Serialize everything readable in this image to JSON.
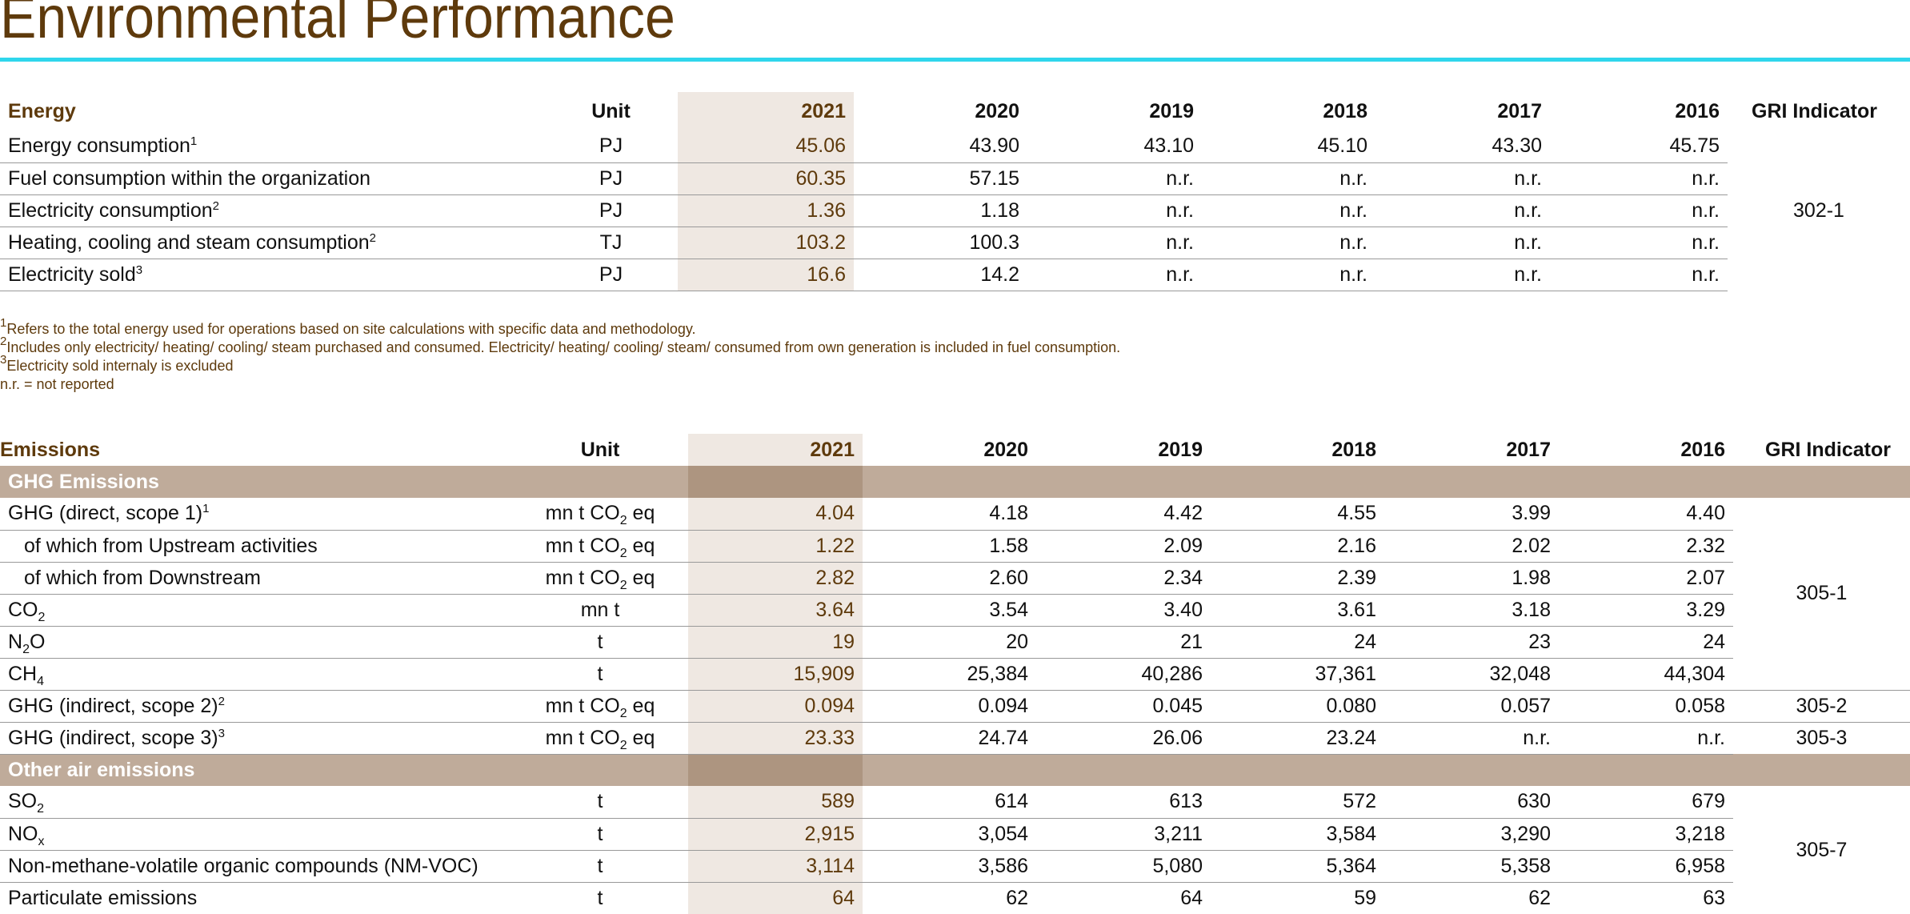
{
  "title": "Environmental Performance",
  "energy": {
    "section": "Energy",
    "headers": [
      "Unit",
      "2021",
      "2020",
      "2019",
      "2018",
      "2017",
      "2016",
      "GRI Indicator"
    ],
    "gri": "302-1",
    "rows": [
      {
        "label": "Energy consumption",
        "sup": "1",
        "unit": "PJ",
        "values": [
          "45.06",
          "43.90",
          "43.10",
          "45.10",
          "43.30",
          "45.75"
        ]
      },
      {
        "label": "Fuel consumption within the organization",
        "sup": "",
        "unit": "PJ",
        "values": [
          "60.35",
          "57.15",
          "n.r.",
          "n.r.",
          "n.r.",
          "n.r."
        ]
      },
      {
        "label": "Electricity consumption",
        "sup": "2",
        "unit": "PJ",
        "values": [
          "1.36",
          "1.18",
          "n.r.",
          "n.r.",
          "n.r.",
          "n.r."
        ]
      },
      {
        "label": "Heating, cooling and steam consumption",
        "sup": "2",
        "unit": "TJ",
        "values": [
          "103.2",
          "100.3",
          "n.r.",
          "n.r.",
          "n.r.",
          "n.r."
        ]
      },
      {
        "label": "Electricity sold",
        "sup": "3",
        "unit": "PJ",
        "values": [
          "16.6",
          "14.2",
          "n.r.",
          "n.r.",
          "n.r.",
          "n.r."
        ]
      }
    ],
    "footnotes": [
      {
        "mark": "1",
        "text": "Refers to the total energy used for operations based on site calculations with specific data and methodology."
      },
      {
        "mark": "2",
        "text": "Includes only electricity/ heating/ cooling/ steam purchased and consumed. Electricity/ heating/ cooling/ steam/ consumed from own generation is included in fuel consumption."
      },
      {
        "mark": "3",
        "text": "Electricity sold internaly is excluded"
      },
      {
        "mark": "",
        "text": "n.r. = not reported"
      }
    ]
  },
  "emissions": {
    "section": "Emissions",
    "headers": [
      "Unit",
      "2021",
      "2020",
      "2019",
      "2018",
      "2017",
      "2016",
      "GRI Indicator"
    ],
    "cat_ghg": "GHG Emissions",
    "cat_other": "Other air emissions",
    "unit_co2eq": {
      "pre": "mn t CO",
      "sub": "2",
      "post": " eq"
    },
    "gri": {
      "g1": "305-1",
      "g2": "305-2",
      "g3": "305-3",
      "g7": "305-7"
    },
    "rows": {
      "r1": {
        "label": "GHG (direct, scope 1)",
        "sup": "1",
        "values": [
          "4.04",
          "4.18",
          "4.42",
          "4.55",
          "3.99",
          "4.40"
        ]
      },
      "r2": {
        "label": "of which from Upstream activities",
        "values": [
          "1.22",
          "1.58",
          "2.09",
          "2.16",
          "2.02",
          "2.32"
        ]
      },
      "r3": {
        "label": "of which from Downstream",
        "values": [
          "2.82",
          "2.60",
          "2.34",
          "2.39",
          "1.98",
          "2.07"
        ]
      },
      "r4": {
        "pre": "CO",
        "sub": "2",
        "unit": "mn t",
        "values": [
          "3.64",
          "3.54",
          "3.40",
          "3.61",
          "3.18",
          "3.29"
        ]
      },
      "r5": {
        "pre": "N",
        "sub": "2",
        "post": "O",
        "unit": "t",
        "values": [
          "19",
          "20",
          "21",
          "24",
          "23",
          "24"
        ]
      },
      "r6": {
        "pre": "CH",
        "sub": "4",
        "unit": "t",
        "values": [
          "15,909",
          "25,384",
          "40,286",
          "37,361",
          "32,048",
          "44,304"
        ]
      },
      "r7": {
        "label": "GHG (indirect, scope 2)",
        "sup": "2",
        "values": [
          "0.094",
          "0.094",
          "0.045",
          "0.080",
          "0.057",
          "0.058"
        ]
      },
      "r8": {
        "label": "GHG (indirect, scope 3)",
        "sup": "3",
        "values": [
          "23.33",
          "24.74",
          "26.06",
          "23.24",
          "n.r.",
          "n.r."
        ]
      },
      "r9": {
        "pre": "SO",
        "sub": "2",
        "unit": "t",
        "values": [
          "589",
          "614",
          "613",
          "572",
          "630",
          "679"
        ]
      },
      "r10": {
        "pre": "NO",
        "sub": "x",
        "unit": "t",
        "values": [
          "2,915",
          "3,054",
          "3,211",
          "3,584",
          "3,290",
          "3,218"
        ]
      },
      "r11": {
        "label": "Non-methane-volatile organic compounds (NM-VOC)",
        "unit": "t",
        "values": [
          "3,114",
          "3,586",
          "5,080",
          "5,364",
          "5,358",
          "6,958"
        ]
      },
      "r12": {
        "label": "Particulate emissions",
        "unit": "t",
        "values": [
          "64",
          "62",
          "64",
          "59",
          "62",
          "63"
        ]
      }
    }
  }
}
